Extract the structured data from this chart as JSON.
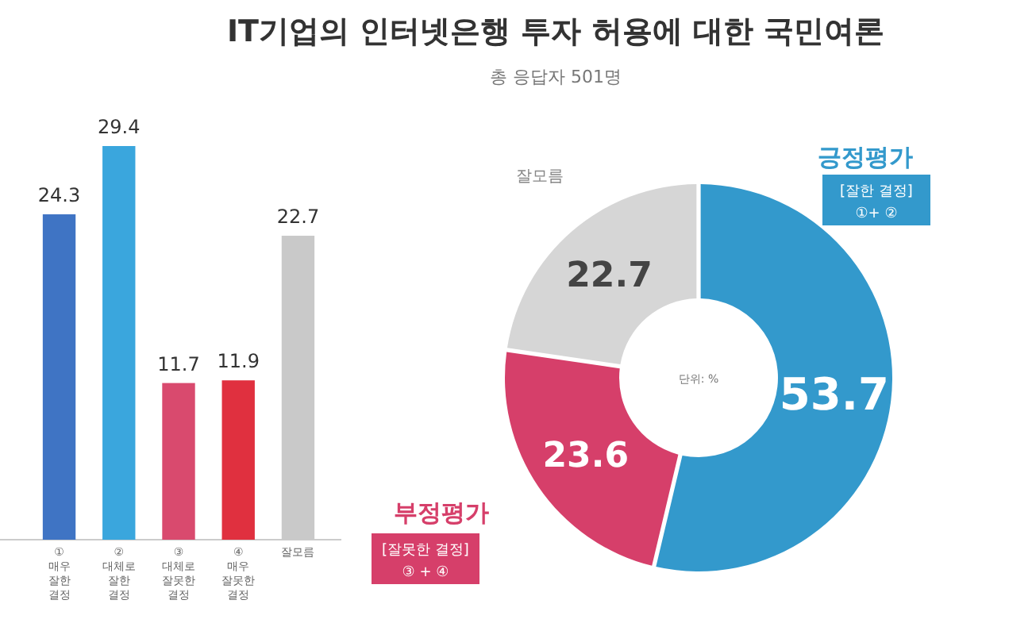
{
  "chart_data": [
    {
      "type": "bar",
      "title": "IT기업의 인터넷은행 투자 허용에 대한 국민여론",
      "categories": [
        "①\n매우\n잘한\n결정",
        "②\n대체로\n잘한\n결정",
        "③\n대체로\n잘못한\n결정",
        "④\n매우\n잘못한\n결정",
        "잘모름"
      ],
      "values": [
        24.3,
        29.4,
        11.7,
        11.9,
        22.7
      ],
      "colors": [
        "#3f74c4",
        "#3aa6dd",
        "#d94a6e",
        "#e0303f",
        "#c9c9c9"
      ],
      "data_labels": true
    },
    {
      "type": "donut",
      "subtitle": "총 응답자 501명",
      "categories": [
        "긍정평가",
        "부정평가",
        "잘모름"
      ],
      "values": [
        53.7,
        23.6,
        22.7
      ],
      "colors": [
        "#3399cc",
        "#d63f6a",
        "#d6d6d6"
      ],
      "data_labels": true,
      "annotations": [
        "[잘한 결정]",
        "①+ ②",
        "[잘못한 결정]",
        "③ + ④",
        "단위: %"
      ]
    }
  ]
}
